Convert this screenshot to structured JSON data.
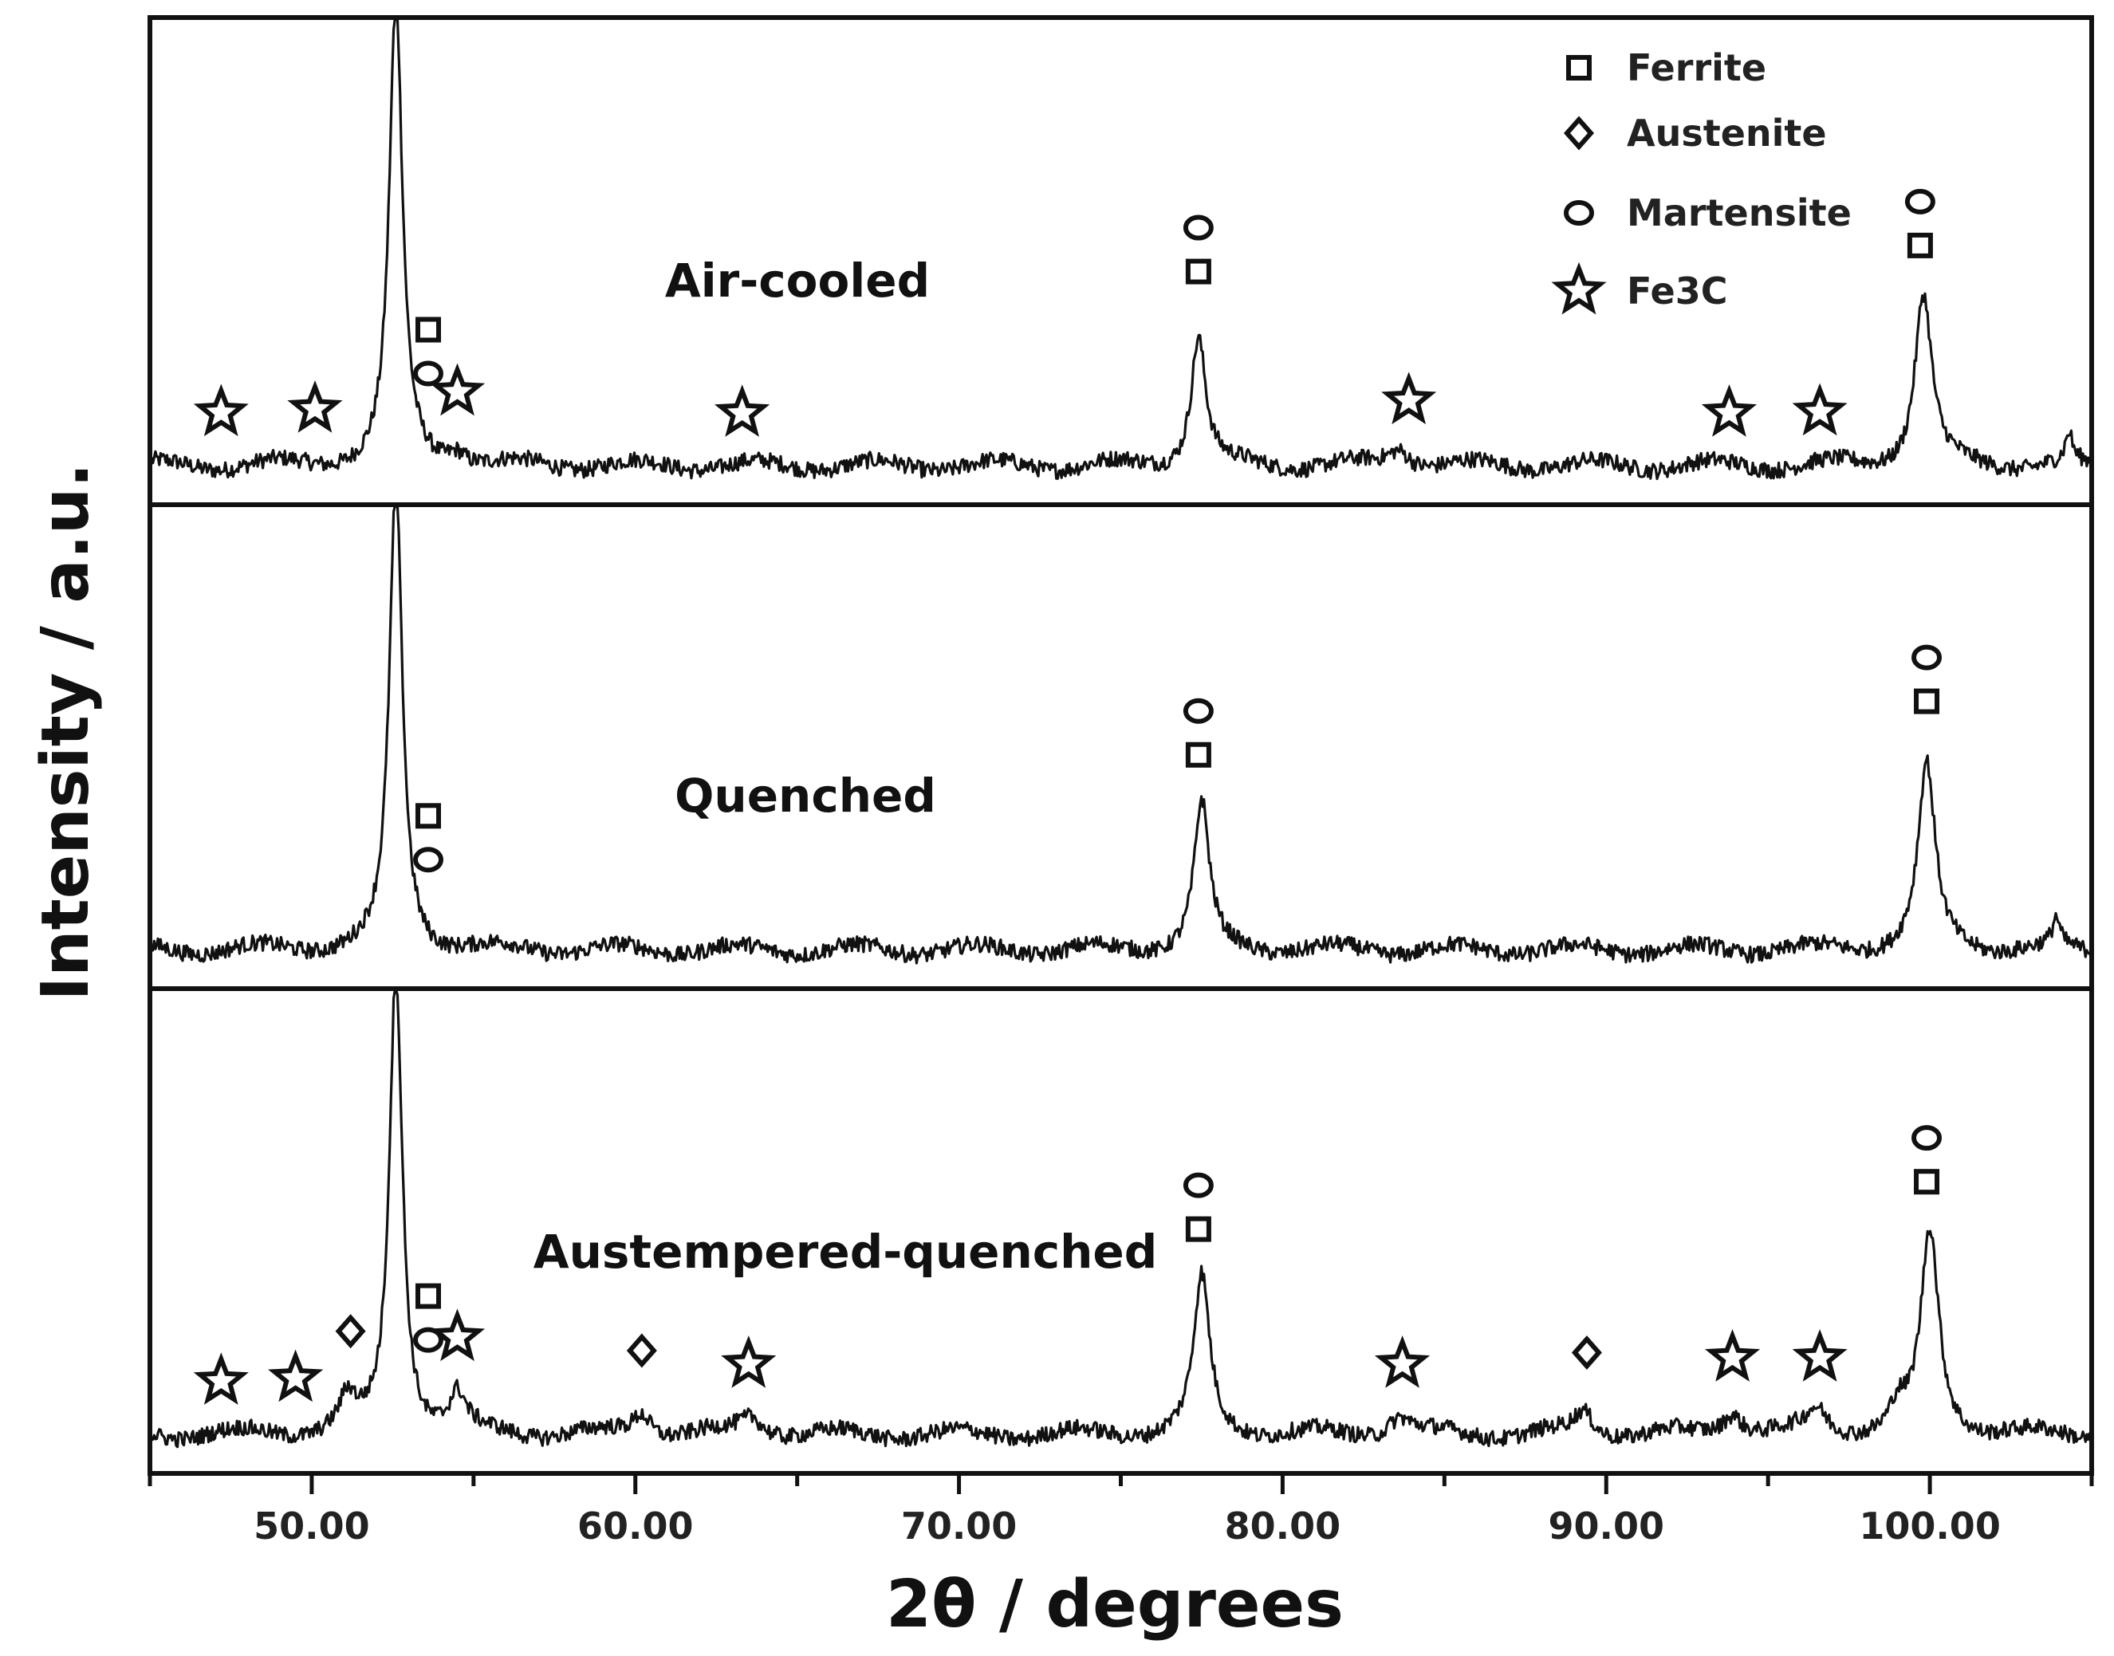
{
  "chart_data": {
    "type": "line",
    "title": "",
    "xlabel": "2θ / degrees",
    "ylabel": "Intensity / a.u.",
    "xlim": [
      45,
      105
    ],
    "x_ticks": [
      50,
      60,
      70,
      80,
      90,
      100
    ],
    "x_tick_labels": [
      "50.00",
      "60.00",
      "70.00",
      "80.00",
      "90.00",
      "100.00"
    ],
    "y_ticks_visible": false,
    "legend": {
      "placement": "top-right",
      "entries": [
        {
          "symbol": "square",
          "label": "Ferrite"
        },
        {
          "symbol": "diamond",
          "label": "Austenite"
        },
        {
          "symbol": "circle",
          "label": "Martensite"
        },
        {
          "symbol": "star",
          "label": "Fe3C"
        }
      ]
    },
    "series": [
      {
        "name": "Air-cooled",
        "baseline": 0.06,
        "peaks": [
          {
            "x": 52.6,
            "height": 1.0,
            "width": 0.28
          },
          {
            "x": 77.4,
            "height": 0.28,
            "width": 0.32
          },
          {
            "x": 99.8,
            "height": 0.37,
            "width": 0.36
          },
          {
            "x": 54.5,
            "height": 0.03,
            "width": 0.4
          },
          {
            "x": 83.6,
            "height": 0.04,
            "width": 0.5
          },
          {
            "x": 104.3,
            "height": 0.06,
            "width": 0.15
          }
        ],
        "annotations": [
          {
            "x": 47.2,
            "symbols": [
              "star"
            ]
          },
          {
            "x": 50.1,
            "symbols": [
              "star"
            ]
          },
          {
            "x": 53.6,
            "symbols": [
              "square",
              "circle"
            ]
          },
          {
            "x": 54.5,
            "symbols": [
              "star"
            ]
          },
          {
            "x": 63.3,
            "symbols": [
              "star"
            ]
          },
          {
            "x": 77.4,
            "symbols": [
              "circle",
              "square"
            ]
          },
          {
            "x": 83.9,
            "symbols": [
              "star"
            ]
          },
          {
            "x": 93.8,
            "symbols": [
              "star"
            ]
          },
          {
            "x": 96.6,
            "symbols": [
              "star"
            ]
          },
          {
            "x": 99.7,
            "symbols": [
              "circle",
              "square"
            ]
          }
        ]
      },
      {
        "name": "Quenched",
        "baseline": 0.06,
        "peaks": [
          {
            "x": 52.6,
            "height": 1.0,
            "width": 0.28
          },
          {
            "x": 77.5,
            "height": 0.32,
            "width": 0.32
          },
          {
            "x": 99.9,
            "height": 0.4,
            "width": 0.36
          },
          {
            "x": 103.9,
            "height": 0.06,
            "width": 0.15
          }
        ],
        "annotations": [
          {
            "x": 53.6,
            "symbols": [
              "square",
              "circle"
            ]
          },
          {
            "x": 77.4,
            "symbols": [
              "circle",
              "square"
            ]
          },
          {
            "x": 99.9,
            "symbols": [
              "circle",
              "square"
            ]
          }
        ]
      },
      {
        "name": "Austempered-quenched",
        "baseline": 0.06,
        "peaks": [
          {
            "x": 52.6,
            "height": 1.0,
            "width": 0.28
          },
          {
            "x": 77.5,
            "height": 0.34,
            "width": 0.34
          },
          {
            "x": 100.0,
            "height": 0.44,
            "width": 0.38
          },
          {
            "x": 51.1,
            "height": 0.07,
            "width": 0.35
          },
          {
            "x": 54.5,
            "height": 0.08,
            "width": 0.35
          },
          {
            "x": 60.2,
            "height": 0.05,
            "width": 0.4
          },
          {
            "x": 63.6,
            "height": 0.04,
            "width": 0.5
          },
          {
            "x": 83.6,
            "height": 0.04,
            "width": 0.5
          },
          {
            "x": 89.3,
            "height": 0.05,
            "width": 0.4
          },
          {
            "x": 93.9,
            "height": 0.05,
            "width": 0.45
          },
          {
            "x": 96.5,
            "height": 0.05,
            "width": 0.45
          },
          {
            "x": 99.0,
            "height": 0.05,
            "width": 0.3
          }
        ],
        "annotations": [
          {
            "x": 47.2,
            "symbols": [
              "star"
            ]
          },
          {
            "x": 49.5,
            "symbols": [
              "star"
            ]
          },
          {
            "x": 51.2,
            "symbols": [
              "diamond"
            ]
          },
          {
            "x": 53.6,
            "symbols": [
              "square",
              "circle"
            ]
          },
          {
            "x": 54.5,
            "symbols": [
              "star"
            ]
          },
          {
            "x": 60.2,
            "symbols": [
              "diamond"
            ]
          },
          {
            "x": 63.5,
            "symbols": [
              "star"
            ]
          },
          {
            "x": 77.4,
            "symbols": [
              "circle",
              "square"
            ]
          },
          {
            "x": 83.7,
            "symbols": [
              "star"
            ]
          },
          {
            "x": 89.4,
            "symbols": [
              "diamond"
            ]
          },
          {
            "x": 93.9,
            "symbols": [
              "star"
            ]
          },
          {
            "x": 96.6,
            "symbols": [
              "star"
            ]
          },
          {
            "x": 99.9,
            "symbols": [
              "circle",
              "square"
            ]
          }
        ]
      }
    ]
  }
}
